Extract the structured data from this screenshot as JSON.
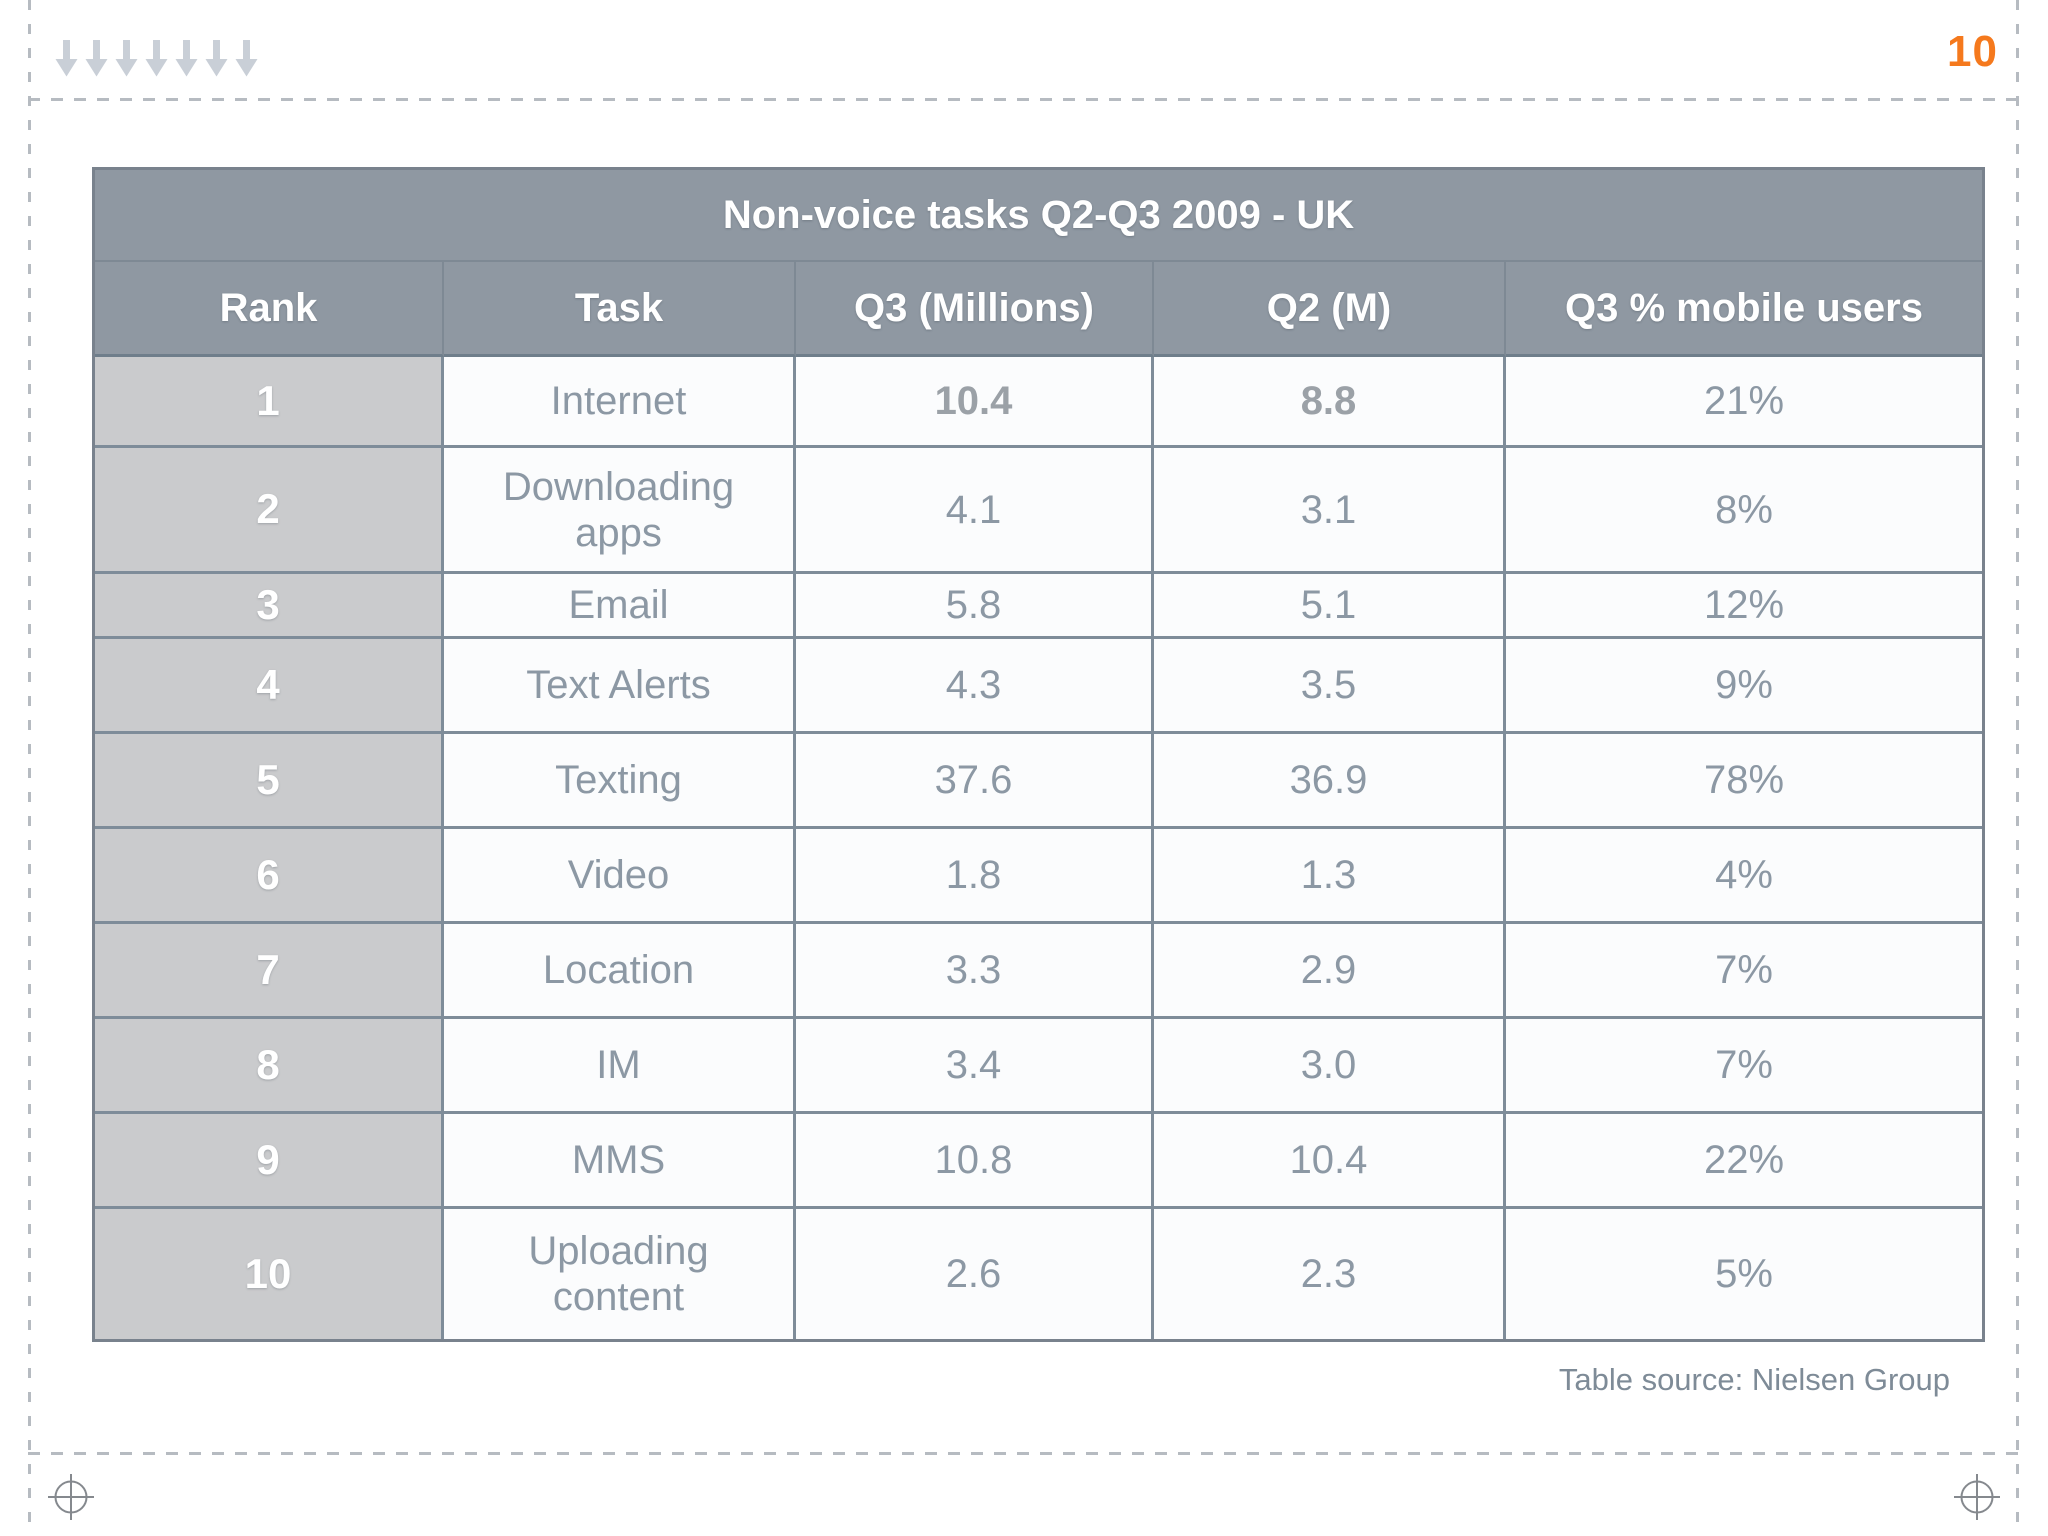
{
  "slide": {
    "page_number": "10",
    "page_number_color": "#f5791d",
    "decoration": {
      "arrow_icon": "down-arrow-icon",
      "arrow_count": 7,
      "arrow_color": "#c9cfd7",
      "crop_mark_icon": "registration-crosshair-icon"
    },
    "source_note": "Table source: Nielsen Group"
  },
  "chart_data": {
    "type": "table",
    "title": "Non-voice tasks Q2-Q3 2009 - UK",
    "columns": [
      "Rank",
      "Task",
      "Q3 (Millions)",
      "Q2 (M)",
      "Q3 % mobile users"
    ],
    "rows": [
      [
        "1",
        "Internet",
        "10.4",
        "8.8",
        "21%"
      ],
      [
        "2",
        "Downloading apps",
        "4.1",
        "3.1",
        "8%"
      ],
      [
        "3",
        "Email",
        "5.8",
        "5.1",
        "12%"
      ],
      [
        "4",
        "Text Alerts",
        "4.3",
        "3.5",
        "9%"
      ],
      [
        "5",
        "Texting",
        "37.6",
        "36.9",
        "78%"
      ],
      [
        "6",
        "Video",
        "1.8",
        "1.3",
        "4%"
      ],
      [
        "7",
        "Location",
        "3.3",
        "2.9",
        "7%"
      ],
      [
        "8",
        "IM",
        "3.4",
        "3.0",
        "7%"
      ],
      [
        "9",
        "MMS",
        "10.8",
        "10.4",
        "22%"
      ],
      [
        "10",
        "Uploading content",
        "2.6",
        "2.3",
        "5%"
      ]
    ],
    "bold_value_cells": [
      [
        0,
        2
      ],
      [
        0,
        3
      ]
    ],
    "legend_position": "none",
    "grid": true
  },
  "colors": {
    "table_header_bg": "#8f98a2",
    "rank_column_bg": "#cacbcd",
    "cell_bg": "#fbfcfd",
    "grid_border": "#7e8c99",
    "data_text": "#8c98a4",
    "dash_line": "#b6bbc1",
    "crosshair": "#85898e"
  }
}
